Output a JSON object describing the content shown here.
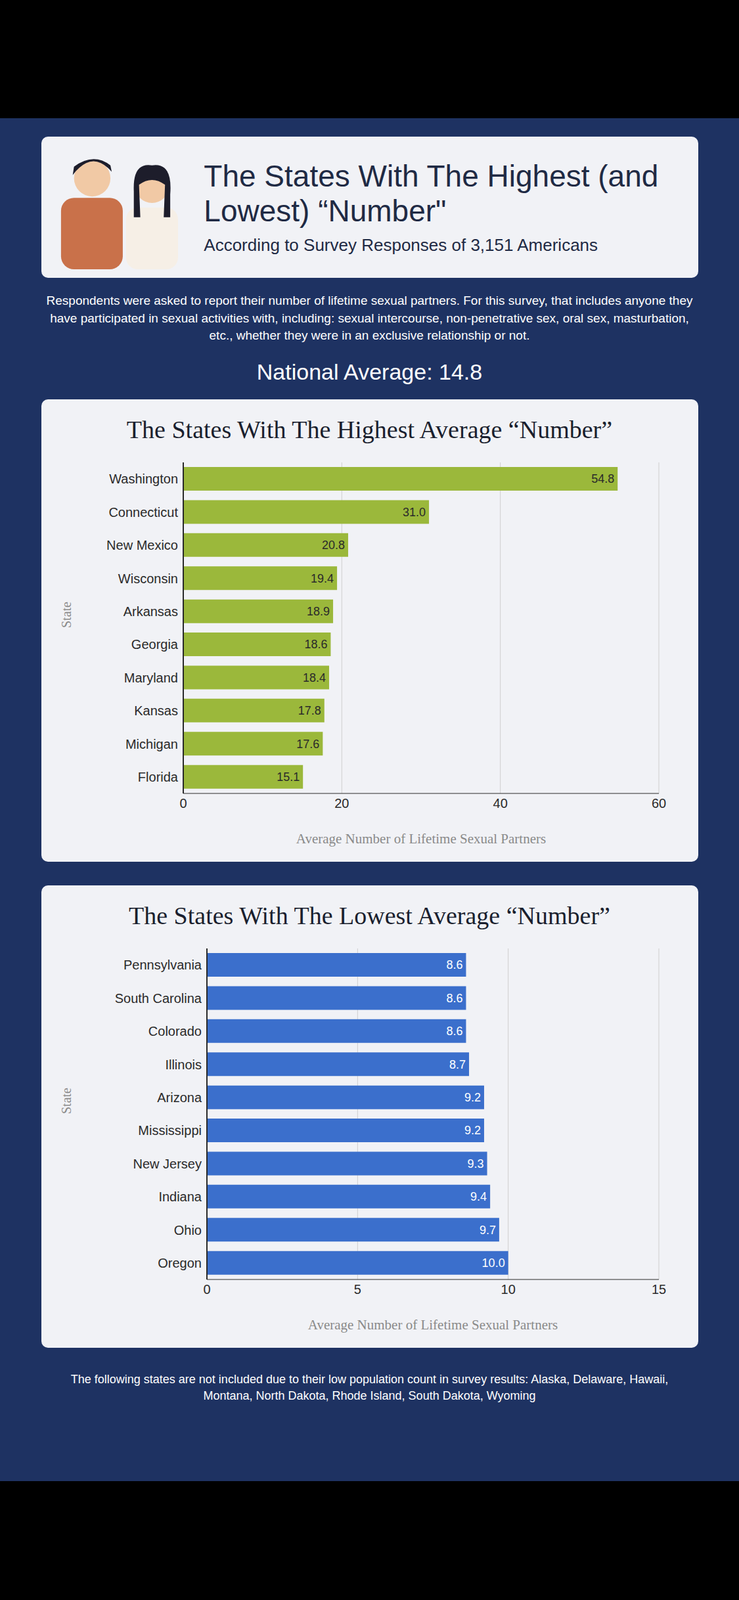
{
  "title": "The States With The Highest (and Lowest) “Number\"",
  "subtitle": "According to Survey Responses of 3,151 Americans",
  "description": "Respondents were asked to report their number of lifetime sexual partners. For this survey, that includes anyone they have participated in sexual activities with, including: sexual intercourse, non-penetrative sex, oral sex, masturbation, etc., whether they were in an exclusive relationship or not.",
  "national_average": "National Average: 14.8",
  "footnote": "The following states are not included due to their low population count in survey results: Alaska, Delaware, Hawaii, Montana, North Dakota, Rhode Island, South Dakota, Wyoming",
  "chart_data": [
    {
      "type": "bar",
      "orientation": "horizontal",
      "title": "The States With The Highest Average “Number”",
      "xlabel": "Average Number of Lifetime Sexual Partners",
      "ylabel": "State",
      "categories": [
        "Washington",
        "Connecticut",
        "New Mexico",
        "Wisconsin",
        "Arkansas",
        "Georgia",
        "Maryland",
        "Kansas",
        "Michigan",
        "Florida"
      ],
      "values": [
        54.8,
        31.0,
        20.8,
        19.4,
        18.9,
        18.6,
        18.4,
        17.8,
        17.6,
        15.1
      ],
      "value_labels": [
        "54.8",
        "31.0",
        "20.8",
        "19.4",
        "18.9",
        "18.6",
        "18.4",
        "17.8",
        "17.6",
        "15.1"
      ],
      "color": "#9bb83b",
      "xlim": [
        0,
        60
      ],
      "xticks": [
        0,
        20,
        40,
        60
      ],
      "grid": true,
      "data_labels": true
    },
    {
      "type": "bar",
      "orientation": "horizontal",
      "title": "The States With The Lowest Average “Number”",
      "xlabel": "Average Number of Lifetime Sexual Partners",
      "ylabel": "State",
      "categories": [
        "Pennsylvania",
        "South Carolina",
        "Colorado",
        "Illinois",
        "Arizona",
        "Mississippi",
        "New Jersey",
        "Indiana",
        "Ohio",
        "Oregon"
      ],
      "values": [
        8.6,
        8.6,
        8.6,
        8.7,
        9.2,
        9.2,
        9.3,
        9.4,
        9.7,
        10.0
      ],
      "value_labels": [
        "8.6",
        "8.6",
        "8.6",
        "8.7",
        "9.2",
        "9.2",
        "9.3",
        "9.4",
        "9.7",
        "10.0"
      ],
      "color": "#3b6fcc",
      "xlim": [
        0,
        15
      ],
      "xticks": [
        0,
        5,
        10,
        15
      ],
      "grid": true,
      "data_labels": true
    }
  ]
}
